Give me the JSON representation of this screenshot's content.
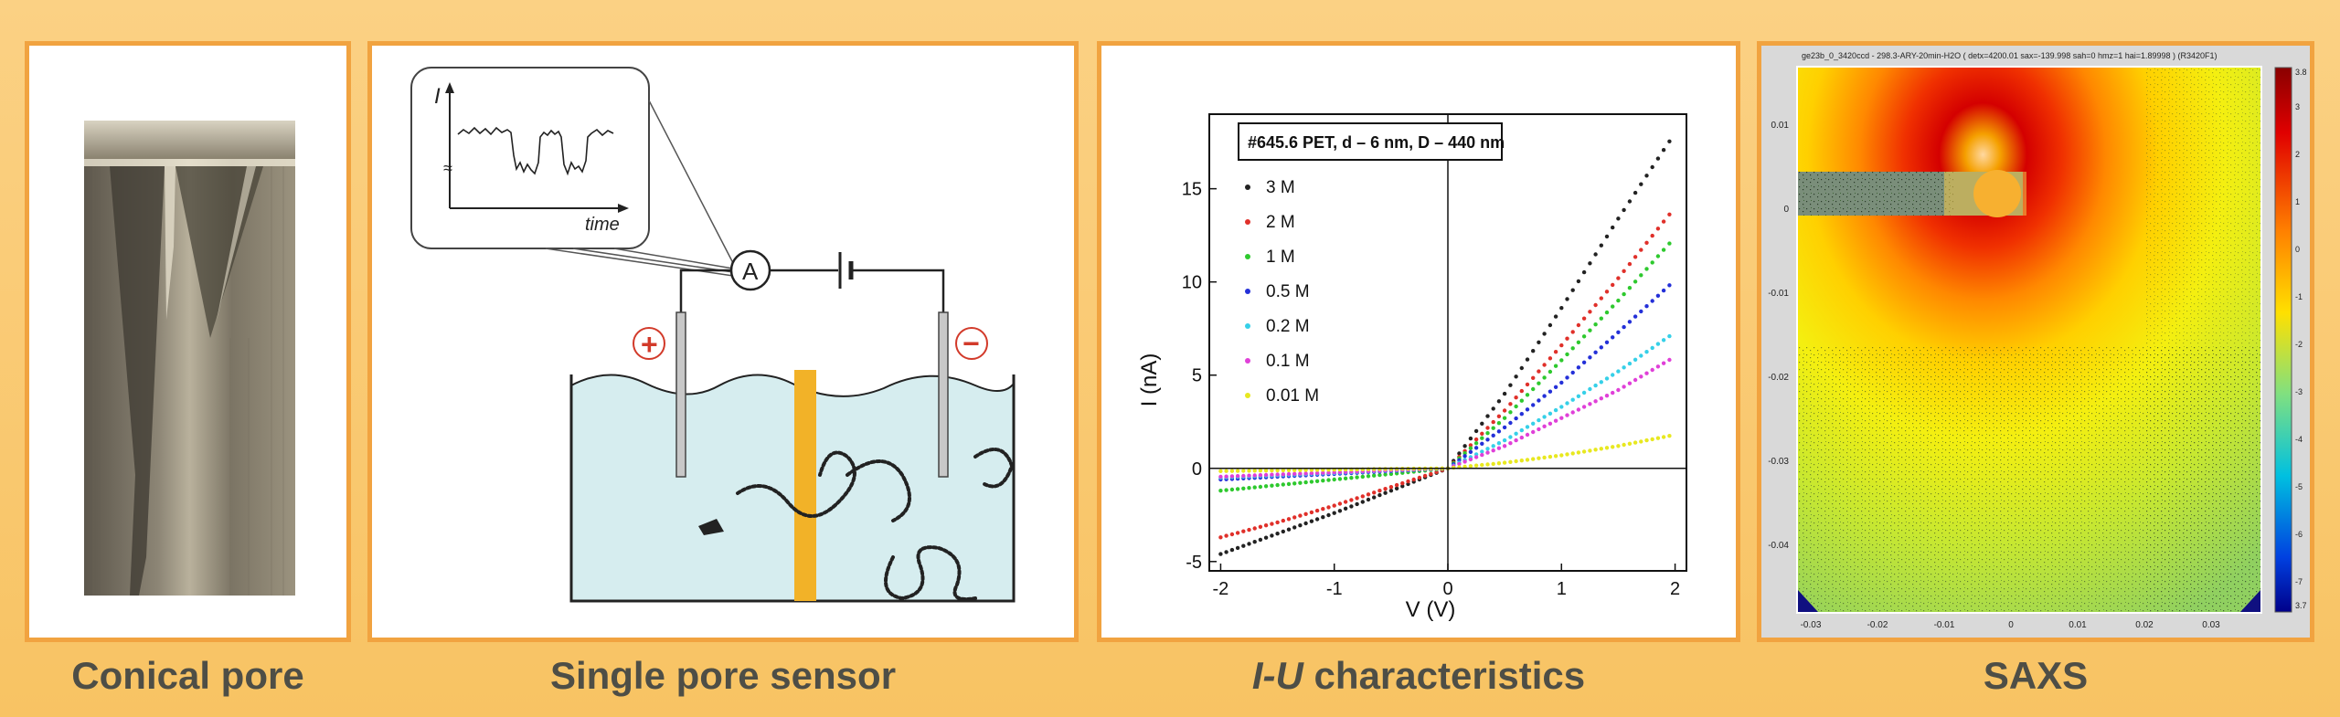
{
  "panels": {
    "conical": {
      "caption": "Conical pore"
    },
    "sensor": {
      "caption": "Single pore sensor",
      "axis_i": "I",
      "axis_time": "time",
      "meter": "A",
      "plus": "+",
      "minus": "−"
    },
    "iu": {
      "caption_italic": "I-U",
      "caption_rest": " characteristics"
    },
    "saxs": {
      "caption": "SAXS",
      "header": "ge23b_0_3420ccd - 298.3-ARY-20min-H2O ( detx=4200.01 sax=-139.998 sah=0 hmz=1 hai=1.89998 ) (R3420F1)",
      "y_ticks": [
        "0.01",
        "0",
        "-0.01",
        "-0.02",
        "-0.03",
        "-0.04"
      ],
      "x_ticks": [
        "-0.03",
        "-0.02",
        "-0.01",
        "0",
        "0.01",
        "0.02",
        "0.03"
      ],
      "colorbar_ticks": [
        "3",
        "2",
        "1",
        "0",
        "-1",
        "-2",
        "-3",
        "-4",
        "-5",
        "-6",
        "-7"
      ],
      "colorbar_extra": [
        "3.8",
        "3.7"
      ]
    }
  },
  "chart_data": {
    "type": "line",
    "title": "#645.6 PET, d – 6 nm, D – 440 nm",
    "xlabel": "V (V)",
    "ylabel": "I (nA)",
    "xlim": [
      -2.1,
      2.1
    ],
    "ylim": [
      -5.5,
      19
    ],
    "x_ticks": [
      -2,
      -1,
      0,
      1,
      2
    ],
    "y_ticks": [
      -5,
      0,
      5,
      10,
      15
    ],
    "legend_position": "left",
    "x": [
      -2,
      -1.5,
      -1,
      -0.5,
      0,
      0.5,
      1,
      1.5,
      2
    ],
    "series": [
      {
        "name": "3 M",
        "color": "#222222",
        "values": [
          -4.6,
          -3.5,
          -2.4,
          -1.2,
          0,
          4.0,
          8.6,
          13.4,
          18.0
        ]
      },
      {
        "name": "2 M",
        "color": "#e0302a",
        "values": [
          -3.7,
          -2.9,
          -2.0,
          -1.0,
          0,
          3.1,
          6.6,
          10.2,
          14.0
        ]
      },
      {
        "name": "1 M",
        "color": "#2ec92e",
        "values": [
          -1.2,
          -0.9,
          -0.6,
          -0.3,
          0,
          2.7,
          5.8,
          9.0,
          12.4
        ]
      },
      {
        "name": "0.5 M",
        "color": "#2430d8",
        "values": [
          -0.6,
          -0.45,
          -0.3,
          -0.15,
          0,
          2.2,
          4.6,
          7.3,
          10.1
        ]
      },
      {
        "name": "0.2 M",
        "color": "#36d0e8",
        "values": [
          -0.5,
          -0.38,
          -0.25,
          -0.12,
          0,
          1.5,
          3.3,
          5.2,
          7.3
        ]
      },
      {
        "name": "0.1 M",
        "color": "#e040d8",
        "values": [
          -0.45,
          -0.33,
          -0.22,
          -0.1,
          0,
          1.2,
          2.7,
          4.2,
          6.0
        ]
      },
      {
        "name": "0.01 M",
        "color": "#e8e820",
        "values": [
          -0.15,
          -0.11,
          -0.07,
          -0.03,
          0,
          0.3,
          0.7,
          1.2,
          1.8
        ]
      }
    ]
  }
}
